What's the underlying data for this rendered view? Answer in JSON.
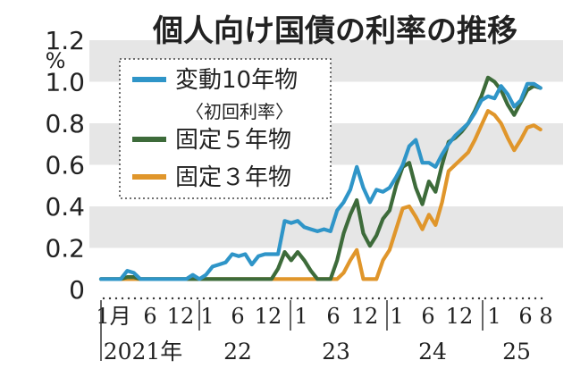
{
  "chart_data": {
    "type": "line",
    "title": "個人向け国債の利率の推移",
    "y_unit": "%",
    "ylim": [
      0,
      1.2
    ],
    "y_ticks": [
      "0",
      "0.2",
      "0.4",
      "0.6",
      "0.8",
      "1.0",
      "1.2"
    ],
    "grid": "horizontal bands",
    "legend_position": "top-left",
    "x_months": [
      "1月",
      "6",
      "12",
      "1",
      "6",
      "12",
      "1",
      "6",
      "12",
      "1",
      "6",
      "12",
      "1",
      "6",
      "8"
    ],
    "x_years": [
      "2021年",
      "22",
      "23",
      "24",
      "25"
    ],
    "x_range": [
      "2021-01",
      "2025-08"
    ],
    "series": [
      {
        "name": "変動10年物",
        "sub_label": "〈初回利率〉",
        "color": "#2f95c8",
        "x": [
          1,
          2,
          3,
          4,
          5,
          6,
          7,
          8,
          9,
          10,
          11,
          12,
          13,
          14,
          15,
          16,
          17,
          18,
          19,
          20,
          21,
          22,
          23,
          24,
          25,
          26,
          27,
          28,
          29,
          30,
          31,
          32,
          33,
          34,
          35,
          36,
          37,
          38,
          39,
          40,
          41,
          42,
          43,
          44,
          45,
          46,
          47,
          48,
          49,
          50,
          51,
          52,
          53,
          54,
          55,
          56
        ],
        "values": [
          0.05,
          0.05,
          0.05,
          0.05,
          0.09,
          0.08,
          0.05,
          0.05,
          0.05,
          0.05,
          0.05,
          0.05,
          0.05,
          0.05,
          0.07,
          0.05,
          0.07,
          0.11,
          0.12,
          0.13,
          0.17,
          0.16,
          0.17,
          0.12,
          0.16,
          0.17,
          0.17,
          0.17,
          0.33,
          0.32,
          0.33,
          0.3,
          0.29,
          0.28,
          0.29,
          0.28,
          0.38,
          0.42,
          0.48,
          0.59,
          0.49,
          0.42,
          0.48,
          0.47,
          0.49,
          0.54,
          0.6,
          0.69,
          0.72,
          0.61,
          0.61,
          0.59,
          0.65,
          0.7,
          0.74,
          0.77
        ]
      },
      {
        "name": "固定５年物",
        "color": "#3d6b3a",
        "x": [
          1,
          2,
          3,
          4,
          5,
          6,
          7,
          8,
          9,
          10,
          11,
          12,
          13,
          14,
          15,
          16,
          17,
          18,
          19,
          20,
          21,
          22,
          23,
          24,
          25,
          26,
          27,
          28,
          29,
          30,
          31,
          32,
          33,
          34,
          35,
          36,
          37,
          38,
          39,
          40,
          41,
          42,
          43,
          44,
          45,
          46,
          47,
          48,
          49,
          50,
          51,
          52,
          53,
          54,
          55,
          56
        ],
        "values": [
          0.05,
          0.05,
          0.05,
          0.05,
          0.06,
          0.06,
          0.05,
          0.05,
          0.05,
          0.05,
          0.05,
          0.05,
          0.05,
          0.05,
          0.05,
          0.05,
          0.05,
          0.05,
          0.05,
          0.05,
          0.05,
          0.05,
          0.05,
          0.05,
          0.05,
          0.05,
          0.05,
          0.1,
          0.18,
          0.14,
          0.18,
          0.14,
          0.09,
          0.05,
          0.05,
          0.05,
          0.14,
          0.27,
          0.36,
          0.43,
          0.27,
          0.21,
          0.26,
          0.34,
          0.38,
          0.5,
          0.59,
          0.61,
          0.49,
          0.41,
          0.52,
          0.47,
          0.6,
          0.71,
          0.73,
          0.76
        ]
      },
      {
        "name": "固定３年物",
        "color": "#e0962b",
        "x": [
          1,
          2,
          3,
          4,
          5,
          6,
          7,
          8,
          9,
          10,
          11,
          12,
          13,
          14,
          15,
          16,
          17,
          18,
          19,
          20,
          21,
          22,
          23,
          24,
          25,
          26,
          27,
          28,
          29,
          30,
          31,
          32,
          33,
          34,
          35,
          36,
          37,
          38,
          39,
          40,
          41,
          42,
          43,
          44,
          45,
          46,
          47,
          48,
          49,
          50,
          51,
          52,
          53,
          54,
          55,
          56
        ],
        "values": [
          0.05,
          0.05,
          0.05,
          0.05,
          0.05,
          0.05,
          0.05,
          0.05,
          0.05,
          0.05,
          0.05,
          0.05,
          0.05,
          0.05,
          0.05,
          0.05,
          0.05,
          0.05,
          0.05,
          0.05,
          0.05,
          0.05,
          0.05,
          0.05,
          0.05,
          0.05,
          0.05,
          0.05,
          0.05,
          0.05,
          0.05,
          0.05,
          0.05,
          0.05,
          0.05,
          0.05,
          0.05,
          0.08,
          0.14,
          0.19,
          0.05,
          0.05,
          0.05,
          0.14,
          0.19,
          0.29,
          0.39,
          0.4,
          0.35,
          0.29,
          0.36,
          0.31,
          0.42,
          0.57,
          0.6,
          0.63
        ]
      }
    ],
    "tail_series": [
      {
        "name": "変動10年物",
        "x": [
          57,
          58,
          59,
          60,
          61,
          62,
          63,
          64,
          65,
          66,
          67,
          68
        ],
        "values": [
          0.8,
          0.85,
          0.91,
          0.93,
          0.92,
          0.98,
          0.94,
          0.88,
          0.91,
          0.99,
          0.99,
          0.97
        ]
      },
      {
        "name": "固定５年物",
        "x": [
          57,
          58,
          59,
          60,
          61,
          62,
          63,
          64,
          65,
          66,
          67,
          68
        ],
        "values": [
          0.8,
          0.86,
          0.93,
          1.02,
          1.0,
          0.96,
          0.89,
          0.84,
          0.9,
          0.96,
          0.98,
          0.97
        ]
      },
      {
        "name": "固定３年物",
        "x": [
          57,
          58,
          59,
          60,
          61,
          62,
          63,
          64,
          65,
          66,
          67,
          68
        ],
        "values": [
          0.66,
          0.72,
          0.79,
          0.86,
          0.84,
          0.8,
          0.73,
          0.67,
          0.72,
          0.78,
          0.79,
          0.77
        ]
      }
    ]
  }
}
